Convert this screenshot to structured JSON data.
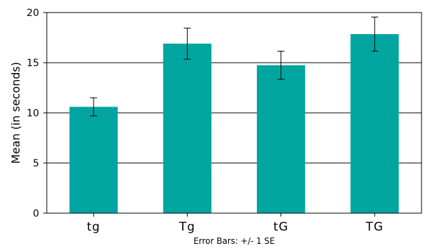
{
  "chart_data": {
    "type": "bar",
    "categories": [
      "tg",
      "Tg",
      "tG",
      "TG"
    ],
    "values": [
      10.6,
      16.9,
      14.75,
      17.85
    ],
    "error_bars": {
      "lower": [
        9.7,
        15.35,
        13.35,
        16.15
      ],
      "upper": [
        11.5,
        18.45,
        16.15,
        19.55
      ]
    },
    "xlabel": "",
    "ylabel": "Mean (in seconds)",
    "ylim": [
      0,
      20
    ],
    "yticks": [
      "0",
      "5",
      "10",
      "15",
      "20"
    ],
    "footnote": "Error Bars: +/- 1 SE",
    "grid": true,
    "bar_color": "#00a5a0"
  }
}
